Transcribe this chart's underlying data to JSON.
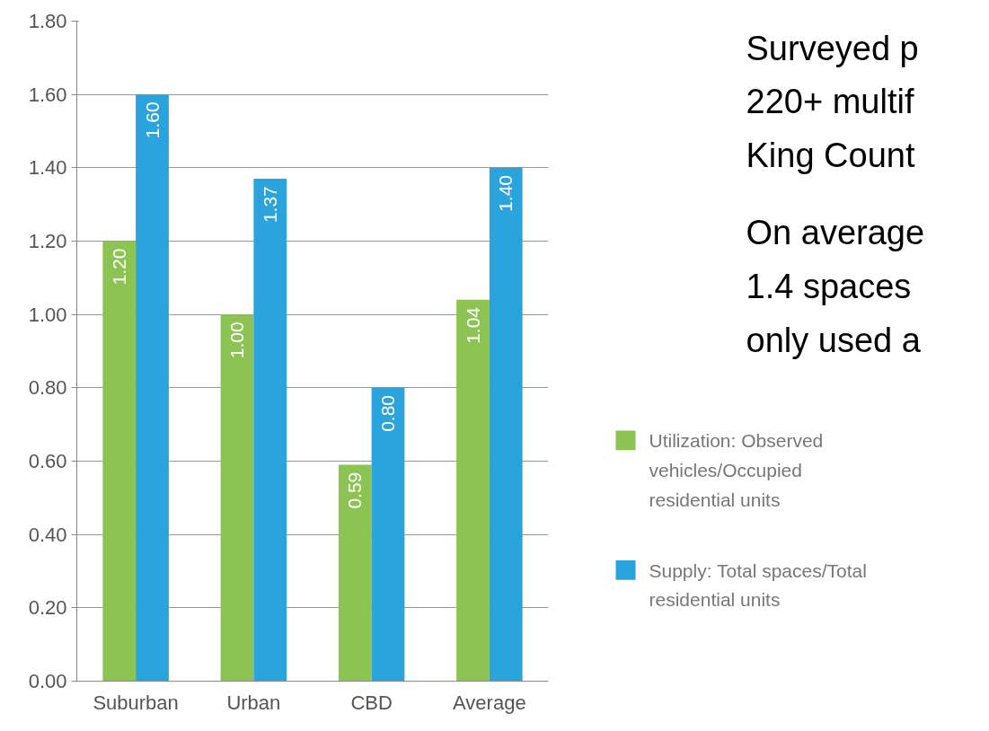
{
  "chart_data": {
    "type": "bar",
    "categories": [
      "Suburban",
      "Urban",
      "CBD",
      "Average"
    ],
    "series": [
      {
        "name": "Utilization: Observed vehicles/Occupied residential units",
        "color": "#8dc353",
        "values": [
          1.2,
          1.0,
          0.59,
          1.04
        ],
        "value_labels": [
          "1.20",
          "1.00",
          "0.59",
          "1.04"
        ]
      },
      {
        "name": "Supply: Total spaces/Total residential units",
        "color": "#2ba3dc",
        "values": [
          1.6,
          1.37,
          0.8,
          1.4
        ],
        "value_labels": [
          "1.60",
          "1.37",
          "0.80",
          "1.40"
        ]
      }
    ],
    "ylim": [
      0,
      1.8
    ],
    "yticks": [
      {
        "value": 0,
        "label": "0.00"
      },
      {
        "value": 0.2,
        "label": "0.20"
      },
      {
        "value": 0.4,
        "label": "0.40"
      },
      {
        "value": 0.6,
        "label": "0.60"
      },
      {
        "value": 0.8,
        "label": "0.80"
      },
      {
        "value": 1.0,
        "label": "1.00"
      },
      {
        "value": 1.2,
        "label": "1.20"
      },
      {
        "value": 1.4,
        "label": "1.40"
      },
      {
        "value": 1.6,
        "label": "1.60"
      },
      {
        "value": 1.8,
        "label": "1.80"
      }
    ],
    "grid": "y",
    "legend": "right",
    "annotations": [
      "Surveyed p",
      "220+ multif",
      "King Count",
      "On average",
      "1.4 spaces",
      "only used a"
    ]
  }
}
